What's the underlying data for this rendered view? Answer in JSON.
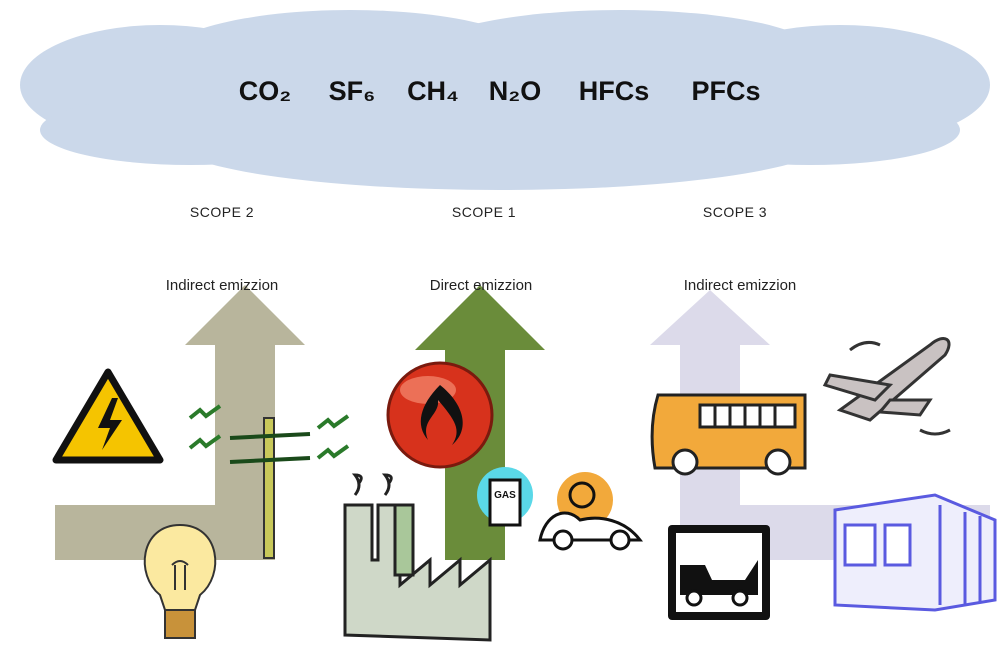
{
  "gases": [
    "CO₂",
    "SF₆",
    "CH₄",
    "N₂O",
    "HFCs",
    "PFCs"
  ],
  "scopes": [
    {
      "scope": "SCOPE 2",
      "emission": "Indirect emizzion"
    },
    {
      "scope": "SCOPE 1",
      "emission": "Direct emizzion"
    },
    {
      "scope": "SCOPE 3",
      "emission": "Indirect emizzion"
    }
  ]
}
